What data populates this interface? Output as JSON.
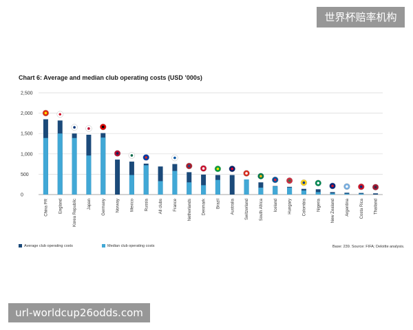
{
  "watermark_top": "世界杯赔率机构",
  "watermark_bottom": "url-worldcup26odds.com",
  "source": "Base: 239. Source: FIFA; Deloitte analysis.",
  "colors": {
    "average": "#1b4a7a",
    "median": "#41a8d6",
    "grid": "#d8d8d8",
    "axis": "#888888"
  },
  "chart_data": {
    "type": "bar",
    "title": "Chart 6: Average and median club operating costs (USD ’000s)",
    "xlabel": "",
    "ylabel": "",
    "ylim": [
      0,
      2500
    ],
    "yticks": [
      "0",
      "500",
      "1,000",
      "1,500",
      "2,000",
      "2,500"
    ],
    "grid": true,
    "legend_position": "bottom-left",
    "categories": [
      "China PR",
      "England",
      "Korea Republic",
      "Japan",
      "Germany",
      "Norway",
      "Mexico",
      "Russia",
      "All clubs",
      "France",
      "Netherlands",
      "Denmark",
      "Brazil",
      "Australia",
      "Switzerland",
      "South Africa",
      "Iceland",
      "Hungary",
      "Colombia",
      "Nigeria",
      "New Zealand",
      "Argentina",
      "Costa Rica",
      "Thailand"
    ],
    "series": [
      {
        "name": "Average club operating costs",
        "values": [
          1850,
          1820,
          1500,
          1470,
          1510,
          860,
          810,
          760,
          690,
          750,
          550,
          490,
          480,
          480,
          370,
          300,
          210,
          190,
          140,
          130,
          60,
          45,
          40,
          30
        ]
      },
      {
        "name": "Median club operating costs",
        "values": [
          1390,
          1500,
          1390,
          960,
          1400,
          0,
          480,
          720,
          330,
          580,
          300,
          230,
          360,
          0,
          370,
          170,
          200,
          170,
          100,
          60,
          30,
          20,
          20,
          0
        ]
      }
    ],
    "flags": [
      "china-flag-icon",
      "england-flag-icon",
      "korea-flag-icon",
      "japan-flag-icon",
      "germany-flag-icon",
      "norway-flag-icon",
      "mexico-flag-icon",
      "russia-flag-icon",
      "",
      "france-flag-icon",
      "netherlands-flag-icon",
      "denmark-flag-icon",
      "brazil-flag-icon",
      "australia-flag-icon",
      "switzerland-flag-icon",
      "south-africa-flag-icon",
      "iceland-flag-icon",
      "hungary-flag-icon",
      "colombia-flag-icon",
      "nigeria-flag-icon",
      "new-zealand-flag-icon",
      "argentina-flag-icon",
      "costa-rica-flag-icon",
      "thailand-flag-icon"
    ]
  }
}
